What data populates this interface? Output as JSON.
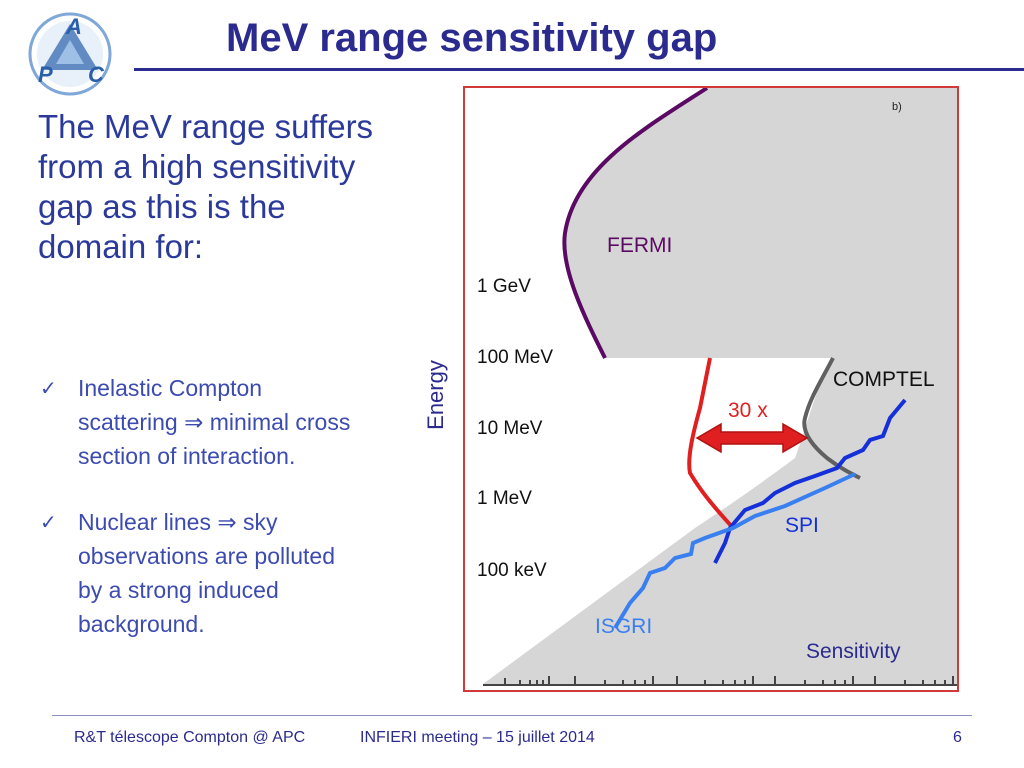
{
  "header": {
    "title": "MeV range sensitivity gap",
    "logo_letters": [
      "A",
      "P",
      "C"
    ]
  },
  "intro": "The MeV range suffers from a high sensitivity gap as this is the domain for:",
  "bullets": [
    {
      "icon": "checkmark-icon",
      "text": "Inelastic  Compton scattering ⇒ minimal cross section of interaction."
    },
    {
      "icon": "checkmark-icon",
      "text": " Nuclear lines ⇒ sky observations are polluted by a strong induced background."
    }
  ],
  "figure": {
    "panel_label": "b)",
    "y_axis_label": "Energy",
    "x_axis_label": "Sensitivity",
    "energy_ticks": [
      "1 GeV",
      "100 MeV",
      "10 MeV",
      "1 MeV",
      "100 keV"
    ],
    "curve_labels": [
      "FERMI",
      "COMPTEL",
      "SPI",
      "ISGRI"
    ],
    "gap_label": "30 x",
    "colors": {
      "fermi": "#5b0a63",
      "comptel": "#606060",
      "spi": "#1530d8",
      "isgri": "#3a7ff0",
      "gap_curve": "#e02020",
      "frame": "#d23a3a",
      "excluded_region": "#d6d6d6"
    }
  },
  "footer": {
    "left": "R&T télescope Compton @ APC",
    "center": "INFIERI meeting – 15 juillet 2014",
    "page": "6"
  }
}
